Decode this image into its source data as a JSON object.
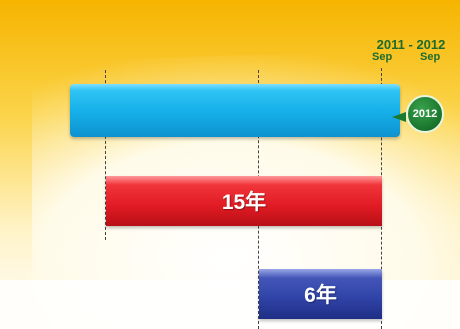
{
  "timeline": {
    "period_start_year": "2011",
    "period_separator": "-",
    "period_end_year": "2012",
    "period_start_month": "Sep",
    "period_end_month": "Sep",
    "badge_year": "2012"
  },
  "bars": [
    {
      "label": "",
      "color": "#15aee8"
    },
    {
      "label": "15年",
      "color": "#e01b24"
    },
    {
      "label": "6年",
      "color": "#2f43a6"
    }
  ],
  "colors": {
    "background_top": "#f6b400",
    "background_bottom": "#ffffff",
    "header_text": "#1e6b2e",
    "badge": "#1c7a30"
  }
}
